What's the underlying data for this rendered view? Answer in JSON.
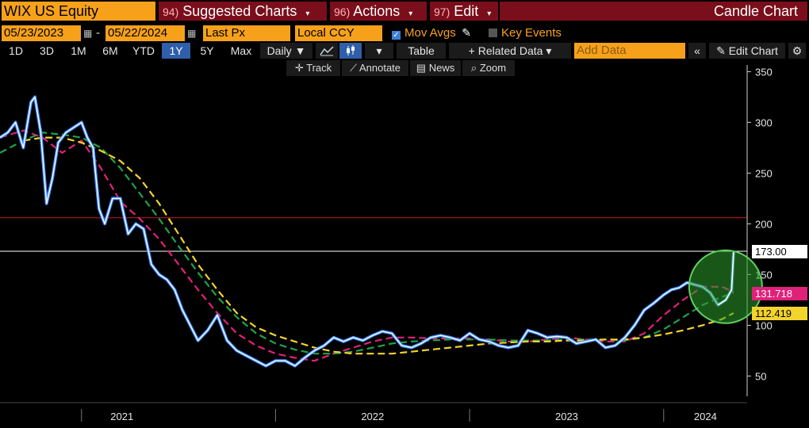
{
  "header": {
    "ticker": "WIX US Equity",
    "menus": [
      {
        "num": "94)",
        "label": "Suggested Charts"
      },
      {
        "num": "96)",
        "label": "Actions"
      },
      {
        "num": "97)",
        "label": "Edit"
      }
    ],
    "chart_title": "Candle Chart"
  },
  "options": {
    "start_date": "05/23/2023",
    "separator": "-",
    "end_date": "05/22/2024",
    "price_field": "Last Px",
    "currency": "Local CCY",
    "mov_avgs_label": "Mov Avgs",
    "key_events_label": "Key Events"
  },
  "toolbar": {
    "periods": [
      "1D",
      "3D",
      "1M",
      "6M",
      "YTD",
      "1Y",
      "5Y",
      "Max"
    ],
    "active_period": "1Y",
    "frequency": "Daily ▼",
    "table_label": "Table",
    "related_data_label": "+ Related Data ▾",
    "add_data_placeholder": "Add Data",
    "edit_chart_label": "Edit Chart"
  },
  "chart_tools": [
    {
      "icon": "crosshair-icon",
      "glyph": "✛",
      "label": "Track"
    },
    {
      "icon": "annotate-icon",
      "glyph": "⟋",
      "label": "Annotate"
    },
    {
      "icon": "news-icon",
      "glyph": "▤",
      "label": "News"
    },
    {
      "icon": "zoom-icon",
      "glyph": "⌕",
      "label": "Zoom"
    }
  ],
  "colors": {
    "price": "#ffffff",
    "price_body": "#3d8bff",
    "ma_magenta": "#e0217a",
    "ma_green": "#1ea34a",
    "ma_yellow": "#f2d42c",
    "hline_red": "#c8181e",
    "hline_white": "#ffffff",
    "highlight_circle": "#3fbf3f",
    "menu_bg": "#7a0e1a",
    "accent_orange": "#f7a11b"
  },
  "chart_data": {
    "type": "line",
    "ylim": [
      30,
      355
    ],
    "y_ticks": [
      50,
      100,
      150,
      200,
      250,
      300,
      350
    ],
    "x_ticks": [
      "2021",
      "2022",
      "2023",
      "2024"
    ],
    "x_tick_positions": [
      2021.0,
      2022.0,
      2023.0,
      2024.0
    ],
    "xlim": [
      2020.58,
      2024.43
    ],
    "horizontal_lines": [
      {
        "value": 206,
        "color": "red"
      },
      {
        "value": 173,
        "color": "white"
      }
    ],
    "price_labels": [
      {
        "label": "173.00",
        "value": 173.0
      },
      {
        "label": "131.718",
        "value": 131.718
      },
      {
        "label": "112.419",
        "value": 112.419
      }
    ],
    "series": [
      {
        "id": "price",
        "x": [
          2020.58,
          2020.62,
          2020.66,
          2020.7,
          2020.74,
          2020.76,
          2020.79,
          2020.82,
          2020.85,
          2020.88,
          2020.92,
          2020.96,
          2021.0,
          2021.03,
          2021.06,
          2021.09,
          2021.12,
          2021.16,
          2021.2,
          2021.24,
          2021.28,
          2021.32,
          2021.36,
          2021.4,
          2021.44,
          2021.48,
          2021.52,
          2021.56,
          2021.6,
          2021.65,
          2021.7,
          2021.75,
          2021.8,
          2021.85,
          2021.9,
          2021.95,
          2022.0,
          2022.05,
          2022.1,
          2022.15,
          2022.2,
          2022.25,
          2022.3,
          2022.35,
          2022.4,
          2022.45,
          2022.5,
          2022.55,
          2022.6,
          2022.65,
          2022.7,
          2022.75,
          2022.8,
          2022.85,
          2022.9,
          2022.95,
          2023.0,
          2023.05,
          2023.1,
          2023.15,
          2023.2,
          2023.25,
          2023.3,
          2023.35,
          2023.4,
          2023.45,
          2023.5,
          2023.55,
          2023.6,
          2023.65,
          2023.7,
          2023.75,
          2023.8,
          2023.85,
          2023.9,
          2023.95,
          2024.0,
          2024.04,
          2024.08,
          2024.12,
          2024.16,
          2024.2,
          2024.24,
          2024.28,
          2024.32,
          2024.35,
          2024.36
        ],
        "values": [
          285,
          290,
          300,
          275,
          320,
          325,
          290,
          220,
          245,
          280,
          290,
          295,
          300,
          285,
          275,
          215,
          200,
          225,
          225,
          190,
          200,
          195,
          160,
          150,
          145,
          135,
          115,
          100,
          85,
          95,
          110,
          85,
          75,
          70,
          65,
          60,
          65,
          65,
          60,
          68,
          75,
          80,
          88,
          84,
          88,
          85,
          90,
          94,
          92,
          80,
          78,
          82,
          88,
          90,
          88,
          85,
          92,
          86,
          84,
          80,
          78,
          80,
          95,
          92,
          88,
          89,
          88,
          82,
          84,
          86,
          78,
          80,
          88,
          100,
          115,
          122,
          130,
          135,
          137,
          142,
          140,
          138,
          132,
          120,
          125,
          135,
          172
        ]
      },
      {
        "id": "ma_magenta",
        "x": [
          2020.58,
          2020.7,
          2020.8,
          2020.9,
          2021.0,
          2021.1,
          2021.2,
          2021.3,
          2021.4,
          2021.5,
          2021.6,
          2021.7,
          2021.8,
          2021.9,
          2022.0,
          2022.1,
          2022.2,
          2022.3,
          2022.4,
          2022.5,
          2022.6,
          2022.7,
          2022.8,
          2022.9,
          2023.0,
          2023.1,
          2023.2,
          2023.3,
          2023.4,
          2023.5,
          2023.6,
          2023.7,
          2023.8,
          2023.9,
          2024.0,
          2024.1,
          2024.2,
          2024.3,
          2024.36
        ],
        "values": [
          285,
          292,
          285,
          270,
          282,
          255,
          222,
          205,
          185,
          160,
          135,
          112,
          92,
          80,
          72,
          68,
          65,
          72,
          78,
          84,
          88,
          88,
          87,
          87,
          87,
          86,
          84,
          84,
          86,
          88,
          86,
          84,
          84,
          92,
          110,
          125,
          138,
          138,
          133
        ]
      },
      {
        "id": "ma_green",
        "x": [
          2020.58,
          2020.7,
          2020.8,
          2020.9,
          2021.0,
          2021.1,
          2021.2,
          2021.3,
          2021.4,
          2021.5,
          2021.6,
          2021.7,
          2021.8,
          2021.9,
          2022.0,
          2022.1,
          2022.2,
          2022.3,
          2022.4,
          2022.5,
          2022.6,
          2022.7,
          2022.8,
          2022.9,
          2023.0,
          2023.1,
          2023.2,
          2023.3,
          2023.4,
          2023.5,
          2023.6,
          2023.7,
          2023.8,
          2023.9,
          2024.0,
          2024.1,
          2024.2,
          2024.3,
          2024.36
        ],
        "values": [
          270,
          282,
          290,
          288,
          285,
          275,
          255,
          230,
          205,
          178,
          152,
          128,
          108,
          92,
          82,
          76,
          72,
          72,
          74,
          78,
          82,
          84,
          85,
          86,
          86,
          86,
          85,
          85,
          85,
          86,
          86,
          86,
          85,
          88,
          96,
          108,
          120,
          128,
          132
        ]
      },
      {
        "id": "ma_yellow",
        "x": [
          2020.7,
          2020.8,
          2020.9,
          2021.0,
          2021.1,
          2021.2,
          2021.3,
          2021.4,
          2021.5,
          2021.6,
          2021.7,
          2021.8,
          2021.9,
          2022.0,
          2022.1,
          2022.2,
          2022.3,
          2022.4,
          2022.5,
          2022.6,
          2022.7,
          2022.8,
          2022.9,
          2023.0,
          2023.1,
          2023.2,
          2023.3,
          2023.4,
          2023.5,
          2023.6,
          2023.7,
          2023.8,
          2023.9,
          2024.0,
          2024.1,
          2024.2,
          2024.3,
          2024.36
        ],
        "values": [
          282,
          285,
          285,
          280,
          272,
          262,
          245,
          220,
          190,
          160,
          135,
          112,
          98,
          90,
          84,
          78,
          74,
          72,
          72,
          72,
          74,
          76,
          78,
          80,
          82,
          83,
          84,
          84,
          85,
          85,
          86,
          86,
          88,
          91,
          95,
          100,
          106,
          112
        ]
      }
    ]
  }
}
